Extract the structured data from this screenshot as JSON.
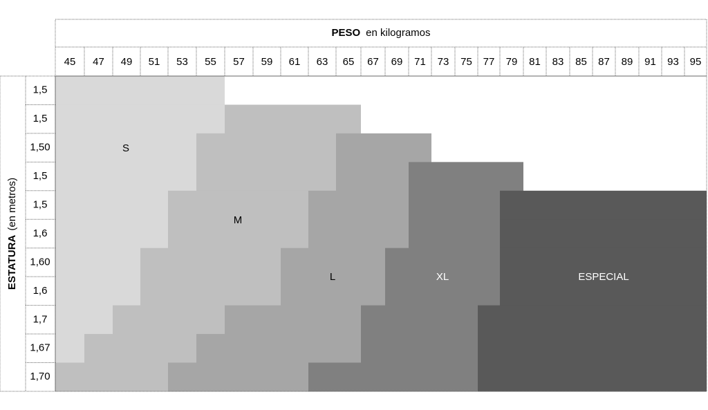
{
  "header": {
    "title": "PESO",
    "unit": "en kilogramos"
  },
  "weights": [
    "45",
    "47",
    "49",
    "51",
    "53",
    "55",
    "57",
    "59",
    "61",
    "63",
    "65",
    "67",
    "69",
    "71",
    "73",
    "75",
    "77",
    "79",
    "81",
    "83",
    "85",
    "87",
    "89",
    "91",
    "93",
    "95"
  ],
  "side": {
    "title": "ESTATURA",
    "unit": "(en metros)"
  },
  "heights": [
    "1,5",
    "1,5",
    "1,50",
    "1,5",
    "1,5",
    "1,6",
    "1,60",
    "1,6",
    "1,7",
    "1,67",
    "1,70"
  ],
  "zones": [
    "S",
    "M",
    "L",
    "XL",
    "ESPECIAL"
  ]
}
